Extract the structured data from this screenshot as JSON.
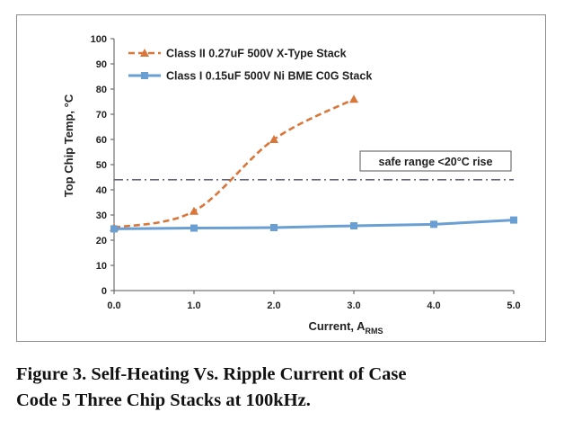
{
  "chart_data": {
    "type": "line",
    "title": "",
    "xlabel_main": "Current, A",
    "xlabel_sub": "RMS",
    "ylabel": "Top Chip Temp, °C",
    "xlim": [
      0,
      5
    ],
    "ylim": [
      0,
      100
    ],
    "xticks": [
      "0.0",
      "1.0",
      "2.0",
      "3.0",
      "4.0",
      "5.0"
    ],
    "yticks": [
      "0",
      "10",
      "20",
      "30",
      "40",
      "50",
      "60",
      "70",
      "80",
      "90",
      "100"
    ],
    "grid": false,
    "legend_position": "top-left",
    "series": [
      {
        "name": "Class II 0.27uF 500V X-Type Stack",
        "color": "#d9763a",
        "line_style": "dashed",
        "marker": "triangle",
        "x": [
          0,
          1,
          2,
          3
        ],
        "y": [
          25,
          31.5,
          60,
          76
        ]
      },
      {
        "name": "Class I 0.15uF 500V Ni BME C0G Stack",
        "color": "#6a9fd4",
        "line_style": "solid",
        "marker": "square",
        "x": [
          0,
          1,
          2,
          3,
          4,
          5
        ],
        "y": [
          24.5,
          24.8,
          25,
          25.7,
          26.3,
          28
        ]
      }
    ],
    "reference_line": {
      "y": 44,
      "color": "#4a4a6e",
      "style": "dash-dot"
    },
    "annotation": {
      "text": "safe range <20°C rise"
    }
  },
  "caption": {
    "line1": "Figure 3. Self-Heating Vs. Ripple Current of Case",
    "line2": "Code 5 Three Chip Stacks at 100kHz."
  }
}
